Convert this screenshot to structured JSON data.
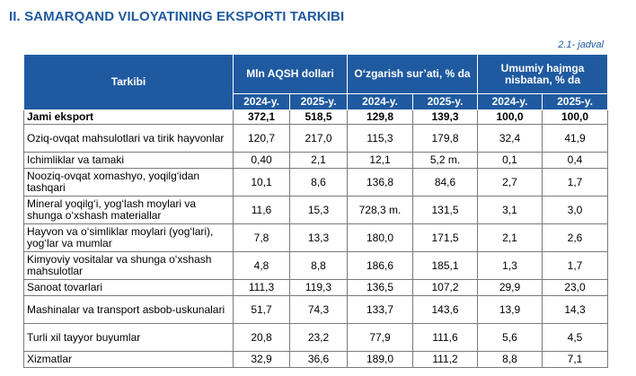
{
  "title": "II. SAMARQAND VILOYATINING EKSPORTI TARKIBI",
  "table_number": "2.1- jadval",
  "headers": {
    "tarkibi": "Tarkibi",
    "mln": "Mln AQSH dollari",
    "ozgarish": "O‘zgarish sur’ati, % da",
    "umumiy": "Umumiy hajmga nisbatan, % da",
    "y2024": "2024-y.",
    "y2025": "2025-y."
  },
  "rows": [
    {
      "name": "Jami eksport",
      "v": [
        "372,1",
        "518,5",
        "129,8",
        "139,3",
        "100,0",
        "100,0"
      ]
    },
    {
      "name": "Oziq-ovqat mahsulotlari va tirik hayvonlar",
      "v": [
        "120,7",
        "217,0",
        "115,3",
        "179,8",
        "32,4",
        "41,9"
      ]
    },
    {
      "name": "Ichimliklar va tamaki",
      "v": [
        "0,40",
        "2,1",
        "12,1",
        "5,2 m.",
        "0,1",
        "0,4"
      ]
    },
    {
      "name": "Nooziq-ovqat xomashyo, yoqilg‘idan tashqari",
      "v": [
        "10,1",
        "8,6",
        "136,8",
        "84,6",
        "2,7",
        "1,7"
      ]
    },
    {
      "name": "Mineral yoqilg‘i, yog‘lash moylari va shunga o‘xshash materiallar",
      "v": [
        "11,6",
        "15,3",
        "728,3 m.",
        "131,5",
        "3,1",
        "3,0"
      ]
    },
    {
      "name": "Hayvon va o‘simliklar moylari (yog‘lari), yog‘lar va mumlar",
      "v": [
        "7,8",
        "13,3",
        "180,0",
        "171,5",
        "2,1",
        "2,6"
      ]
    },
    {
      "name": "Kimyoviy vositalar va shunga o‘xshash mahsulotlar",
      "v": [
        "4,8",
        "8,8",
        "186,6",
        "185,1",
        "1,3",
        "1,7"
      ]
    },
    {
      "name": "Sanoat tovarlari",
      "v": [
        "111,3",
        "119,3",
        "136,5",
        "107,2",
        "29,9",
        "23,0"
      ]
    },
    {
      "name": "Mashinalar va transport asbob-uskunalari",
      "v": [
        "51,7",
        "74,3",
        "133,7",
        "143,6",
        "13,9",
        "14,3"
      ]
    },
    {
      "name": "Turli xil tayyor buyumlar",
      "v": [
        "20,8",
        "23,2",
        "77,9",
        "111,6",
        "5,6",
        "4,5"
      ]
    },
    {
      "name": "Xizmatlar",
      "v": [
        "32,9",
        "36,6",
        "189,0",
        "111,2",
        "8,8",
        "7,1"
      ]
    }
  ]
}
